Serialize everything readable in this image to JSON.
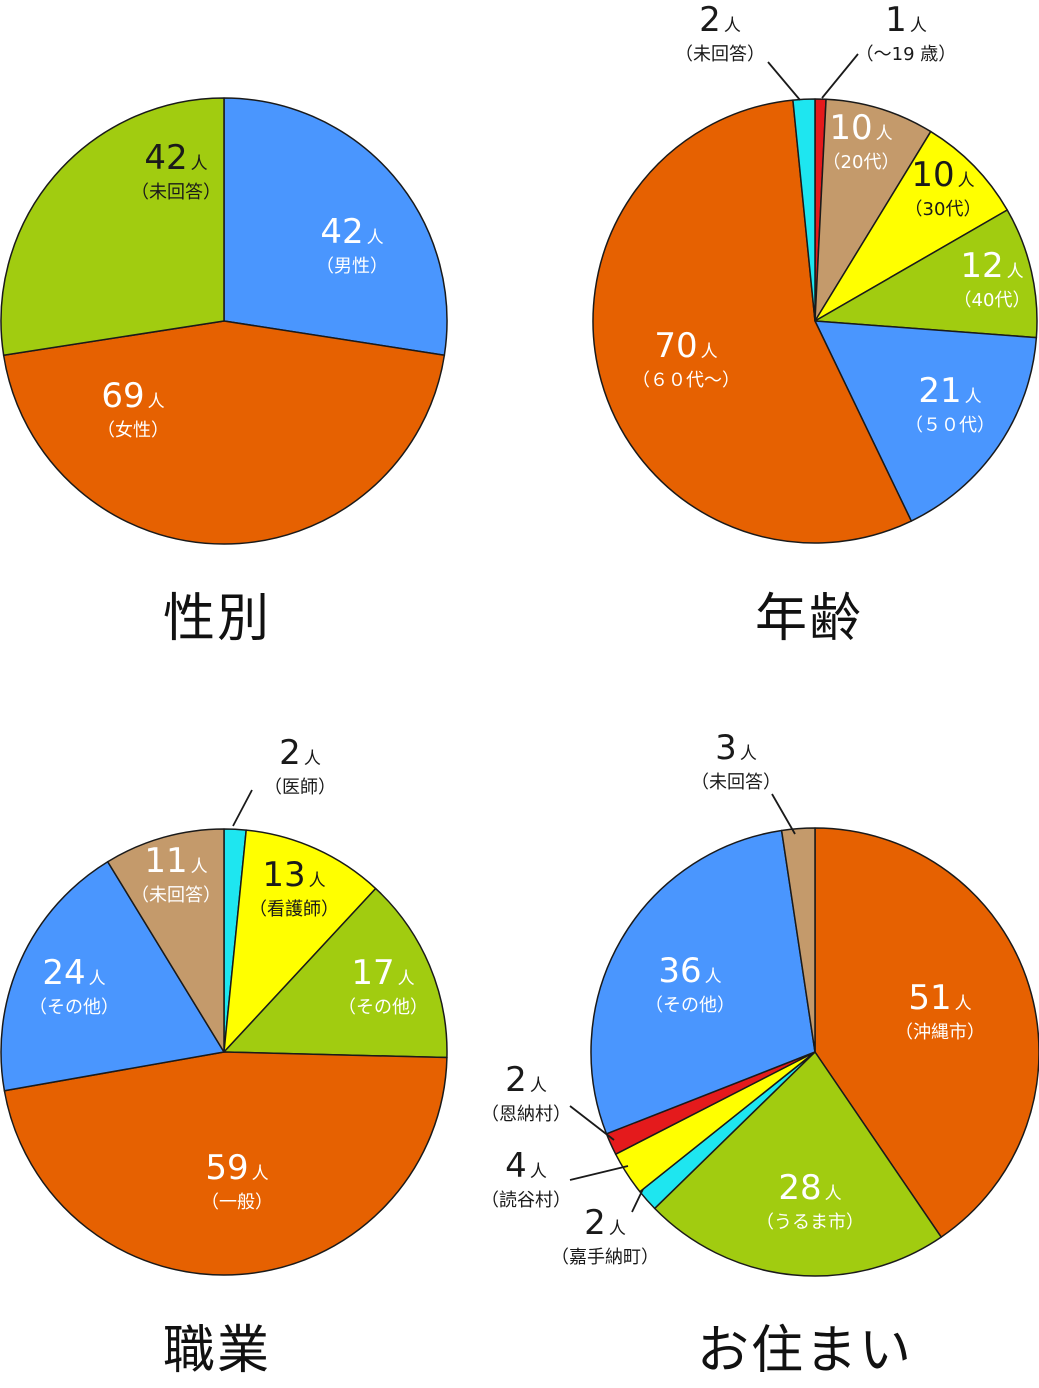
{
  "unit": "人",
  "chart_data": [
    {
      "type": "pie",
      "title": "性別",
      "slices": [
        {
          "label": "男性",
          "value": 42,
          "color": "#4a96fe"
        },
        {
          "label": "女性",
          "value": 69,
          "color": "#e66101"
        },
        {
          "label": "未回答",
          "value": 42,
          "color": "#a1cc10"
        }
      ]
    },
    {
      "type": "pie",
      "title": "年齢",
      "slices": [
        {
          "label": "～19 歳",
          "value": 1,
          "color": "#e41a1c"
        },
        {
          "label": "20代",
          "value": 10,
          "color": "#c49a6b"
        },
        {
          "label": "30代",
          "value": 10,
          "color": "#ffff00"
        },
        {
          "label": "40代",
          "value": 12,
          "color": "#a1cc10"
        },
        {
          "label": "５０代",
          "value": 21,
          "color": "#4a96fe"
        },
        {
          "label": "６０代～",
          "value": 70,
          "color": "#e66101"
        },
        {
          "label": "未回答",
          "value": 2,
          "color": "#1ee6f0"
        }
      ]
    },
    {
      "type": "pie",
      "title": "職業",
      "slices": [
        {
          "label": "医師",
          "value": 2,
          "color": "#1ee6f0"
        },
        {
          "label": "看護師",
          "value": 13,
          "color": "#ffff00"
        },
        {
          "label": "その他",
          "value": 17,
          "color": "#a1cc10"
        },
        {
          "label": "一般",
          "value": 59,
          "color": "#e66101"
        },
        {
          "label": "その他",
          "value": 24,
          "color": "#4a96fe"
        },
        {
          "label": "未回答",
          "value": 11,
          "color": "#c49a6b"
        }
      ]
    },
    {
      "type": "pie",
      "title": "お住まい",
      "slices": [
        {
          "label": "沖縄市",
          "value": 51,
          "color": "#e66101"
        },
        {
          "label": "うるま市",
          "value": 28,
          "color": "#a1cc10"
        },
        {
          "label": "嘉手納町",
          "value": 2,
          "color": "#1ee6f0"
        },
        {
          "label": "読谷村",
          "value": 4,
          "color": "#ffff00"
        },
        {
          "label": "恩納村",
          "value": 2,
          "color": "#e41a1c"
        },
        {
          "label": "その他",
          "value": 36,
          "color": "#4a96fe"
        },
        {
          "label": "未回答",
          "value": 3,
          "color": "#c49a6b"
        }
      ]
    }
  ]
}
